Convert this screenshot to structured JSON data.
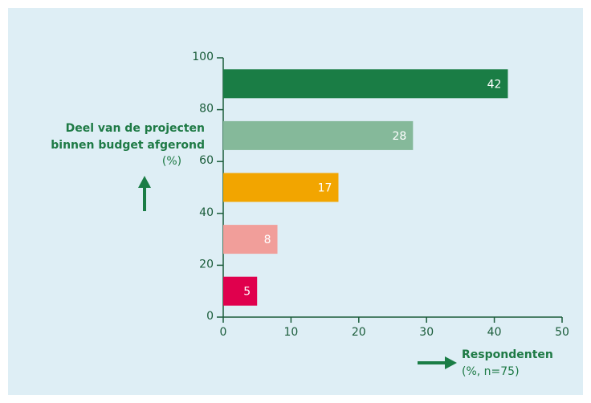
{
  "chart_data": {
    "type": "bar",
    "orientation": "horizontal",
    "y_label": [
      "Deel van de projecten",
      "binnen budget afgerond",
      "(%)"
    ],
    "x_label": [
      "Respondenten",
      "(%, n=75)"
    ],
    "y": [
      90,
      70,
      50,
      30,
      10
    ],
    "values": [
      42,
      28,
      17,
      8,
      5
    ],
    "colors": [
      "#1a7d45",
      "#85b99a",
      "#f2a500",
      "#f19e9a",
      "#e0004d"
    ],
    "xlim": [
      0,
      50
    ],
    "xticks": [
      0,
      10,
      20,
      30,
      40,
      50
    ],
    "ylim": [
      0,
      100
    ],
    "yticks": [
      0,
      20,
      40,
      60,
      80,
      100
    ]
  }
}
